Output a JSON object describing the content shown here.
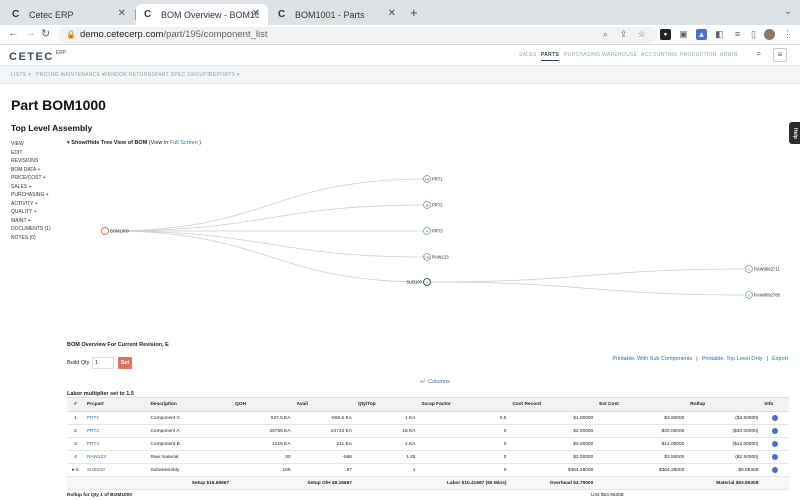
{
  "browser": {
    "tabs": [
      {
        "title": "Cetec ERP",
        "active": false
      },
      {
        "title": "BOM Overview - BOM1000 - P",
        "active": true
      },
      {
        "title": "BOM1001 - Parts",
        "active": false
      }
    ],
    "url_host": "demo.cetecerp.com",
    "url_path": "/part/195/component_list"
  },
  "app": {
    "logo": "CETEC",
    "logo_sup": "ERP",
    "top_nav": [
      "SALES",
      "PARTS",
      "PURCHASING",
      "WAREHOUSE",
      "ACCOUNTING",
      "PRODUCTION",
      "ADMIN"
    ],
    "active_nav": "PARTS",
    "sub_nav": [
      "LISTS ▾",
      "PRICING MAINTENANCE ▾",
      "VENDOR RETURNS",
      "PART SPEC GROUPS",
      "REPORTS ▾"
    ],
    "help_label": "Help"
  },
  "page": {
    "title": "Part BOM1000",
    "subtitle": "Top Level Assembly",
    "side_menu": [
      "VIEW",
      "EDIT",
      "REVISIONS",
      "BOM DATA +",
      "PRICE/COST +",
      "SALES +",
      "PURCHASING +",
      "ACTIVITY +",
      "QUALITY +",
      "MAINT +",
      "DOCUMENTS (1)",
      "NOTES (0)"
    ],
    "tree_toggle": {
      "arrow": "▾",
      "label": "Show/Hide Tree View of BOM",
      "paren_open": "(View in",
      "link": "Full Screen",
      "paren_close": ")"
    }
  },
  "tree": {
    "root": {
      "label": "BOM1000"
    },
    "children": [
      {
        "label": "PRT1",
        "badge": "0.5"
      },
      {
        "label": "PRT2",
        "badge": "15"
      },
      {
        "label": "PRT3",
        "badge": "4"
      },
      {
        "label": "RAW123",
        "badge": "0.30"
      },
      {
        "label": "SUB100",
        "badge": "1"
      }
    ],
    "grandchildren": [
      {
        "label": "RAW9662711",
        "badge": "1"
      },
      {
        "label": "RAW8092785",
        "badge": "1"
      }
    ]
  },
  "overview": {
    "title": "BOM Overview For Current Revision, E",
    "build_qty_label": "Build Qty",
    "build_qty_value": "1",
    "set_label": "Set",
    "links": [
      "Printable, With Sub Components",
      "Printable, Top Level Only",
      "Export"
    ],
    "columns_link": "+/- Columns",
    "labor_note": "Labor multiplier set to 1.5"
  },
  "table": {
    "headers": [
      "#",
      "Prcpart",
      "Description",
      "QOH",
      "Avail",
      "Qty/Top",
      "Scrap Factor",
      "Cost Record",
      "Ext Cost",
      "Rollup",
      "Info"
    ],
    "rows": [
      {
        "num": "1",
        "part": "PRT1",
        "desc": "Component C",
        "qoh": "527.5 EA",
        "avail": "-565.5 EA",
        "qty": "1 EA",
        "scrap": "0.5",
        "cost": "$1.00000",
        "ext": "$3.50000",
        "rollup": "($3.50000)"
      },
      {
        "num": "2",
        "part": "PRT2",
        "desc": "Component A",
        "qoh": "25765 EA",
        "avail": "24743 EA",
        "qty": "15 EA",
        "scrap": "0",
        "cost": "$2.00000",
        "ext": "$30.00000",
        "rollup": "($30.00000)"
      },
      {
        "num": "3",
        "part": "PRT3",
        "desc": "Component B",
        "qoh": "1218 EA",
        "avail": "211 EA",
        "qty": "4 EA",
        "scrap": "0",
        "cost": "$3.00000",
        "ext": "$12.00000",
        "rollup": "($12.00000)"
      },
      {
        "num": "4",
        "part": "RAW123",
        "desc": "Raw material",
        "qoh": "30",
        "avail": "-586",
        "qty": "1.25",
        "scrap": "0",
        "cost": "$2.00000",
        "ext": "$2.50000",
        "rollup": "($2.50000)"
      },
      {
        "num": "▸ 5",
        "part": "SUB100",
        "desc": "Subassembly",
        "qoh": "165",
        "avail": "57",
        "qty": "1",
        "scrap": "0",
        "cost": "$364.28000",
        "ext": "$364.28000",
        "rollup": "$5.96308"
      }
    ],
    "setup_row": {
      "setup": "Setup $16.66667",
      "setup_oh": "Setup O/H $9.16667",
      "labor": "Labor $10.41667 (65 Mins)",
      "overhead": "Overhead $3.75000",
      "material": "Material $53.96308"
    },
    "rollup_label": "Rollup for Qty 1 of BOM1000",
    "rollup_value": "Unit $53.96308"
  }
}
